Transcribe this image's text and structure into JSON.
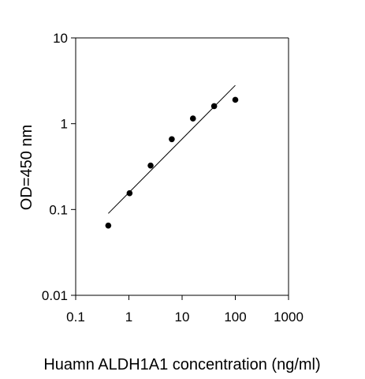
{
  "chart_data": {
    "type": "scatter",
    "title": "",
    "xlabel": "Huamn ALDH1A1 concentration (ng/ml)",
    "ylabel": "OD=450 nm",
    "xscale": "log",
    "yscale": "log",
    "xlim": [
      0.1,
      1000
    ],
    "ylim": [
      0.01,
      10
    ],
    "xticks": [
      "0.1",
      "1",
      "10",
      "100",
      "1000"
    ],
    "yticks": [
      "0.01",
      "0.1",
      "1",
      "10"
    ],
    "grid": false,
    "legend": "none",
    "series": [
      {
        "x": [
          0.41,
          1.03,
          2.56,
          6.4,
          16,
          40,
          100
        ],
        "y": [
          0.065,
          0.155,
          0.325,
          0.66,
          1.15,
          1.6,
          1.9
        ]
      }
    ],
    "fit_line": {
      "x": [
        0.41,
        100
      ],
      "y": [
        0.09,
        2.8
      ]
    }
  }
}
